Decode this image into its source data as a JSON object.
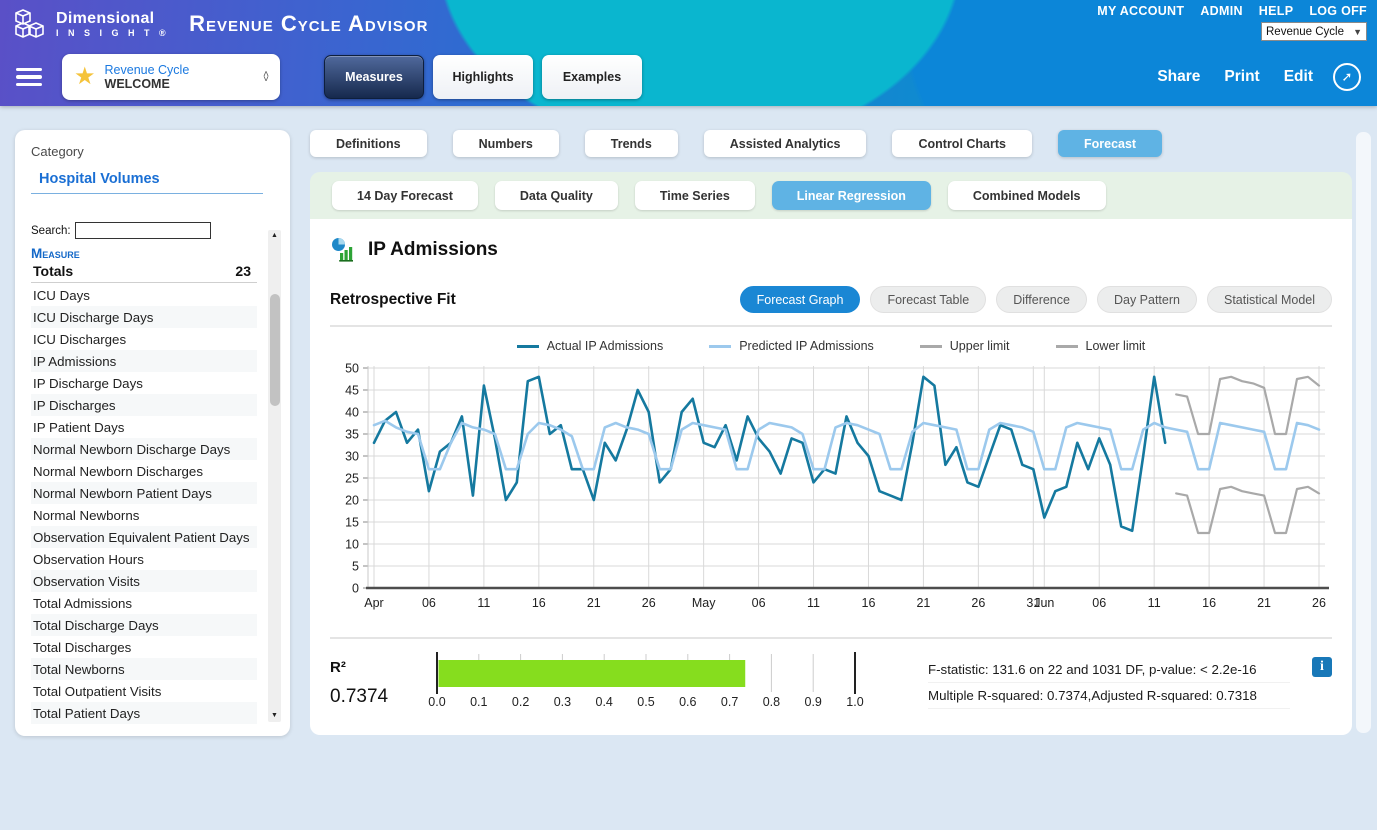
{
  "header": {
    "logo": {
      "line1": "Dimensional",
      "line2": "I N S I G H T ®"
    },
    "app_title": "Revenue Cycle Advisor",
    "top_links": [
      "MY ACCOUNT",
      "ADMIN",
      "HELP",
      "LOG OFF"
    ],
    "module_select": {
      "value": "Revenue Cycle"
    },
    "welcome": {
      "line1": "Revenue Cycle",
      "line2": "WELCOME"
    },
    "nav_buttons": [
      {
        "label": "Measures",
        "active": true
      },
      {
        "label": "Highlights",
        "active": false
      },
      {
        "label": "Examples",
        "active": false
      }
    ],
    "actions": [
      "Share",
      "Print",
      "Edit"
    ]
  },
  "sidebar": {
    "category_label": "Category",
    "category_value": "Hospital Volumes",
    "search_label": "Search:",
    "column_header": "Measure",
    "totals": {
      "label": "Totals",
      "count": "23"
    },
    "items": [
      "ICU Days",
      "ICU Discharge Days",
      "ICU Discharges",
      "IP Admissions",
      "IP Discharge Days",
      "IP Discharges",
      "IP Patient Days",
      "Normal Newborn Discharge Days",
      "Normal Newborn Discharges",
      "Normal Newborn Patient Days",
      "Normal Newborns",
      "Observation Equivalent Patient Days",
      "Observation Hours",
      "Observation Visits",
      "Total Admissions",
      "Total Discharge Days",
      "Total Discharges",
      "Total Newborns",
      "Total Outpatient Visits",
      "Total Patient Days"
    ]
  },
  "tabs": {
    "primary": [
      {
        "label": "Definitions",
        "active": false
      },
      {
        "label": "Numbers",
        "active": false
      },
      {
        "label": "Trends",
        "active": false
      },
      {
        "label": "Assisted Analytics",
        "active": false
      },
      {
        "label": "Control Charts",
        "active": false
      },
      {
        "label": "Forecast",
        "active": true
      }
    ],
    "secondary": [
      {
        "label": "14 Day Forecast",
        "active": false
      },
      {
        "label": "Data Quality",
        "active": false
      },
      {
        "label": "Time Series",
        "active": false
      },
      {
        "label": "Linear Regression",
        "active": true
      },
      {
        "label": "Combined Models",
        "active": false
      }
    ]
  },
  "main": {
    "title": "IP Admissions",
    "section_title": "Retrospective Fit",
    "view_buttons": [
      {
        "label": "Forecast Graph",
        "active": true
      },
      {
        "label": "Forecast Table",
        "active": false
      },
      {
        "label": "Difference",
        "active": false
      },
      {
        "label": "Day Pattern",
        "active": false
      },
      {
        "label": "Statistical Model",
        "active": false
      }
    ],
    "stats": {
      "r2_label": "R²",
      "r2_value": "0.7374",
      "line1": "F-statistic: 131.6 on 22 and 1031 DF, p-value: < 2.2e-16",
      "line2": "Multiple R-squared: 0.7374,Adjusted R-squared: 0.7318"
    }
  },
  "colors": {
    "accent_blue": "#1a87d4",
    "tab_active_blue": "#5fb3e4",
    "gauge_green": "#86DD1E",
    "actual_line": "#15799F",
    "predicted_line": "#9CC9ED",
    "limit_line": "#A9A9A9",
    "header_purple": "#5A50C7",
    "header_blue": "#1473D2",
    "header_cyan": "#06B5CE",
    "info_blue": "#1878B8",
    "star_yellow": "#F5C33B"
  },
  "chart_data": {
    "type": "line",
    "title": "Retrospective Fit",
    "xlabel": "",
    "ylabel": "",
    "ylim": [
      0,
      50
    ],
    "ytick_step": 5,
    "grid": true,
    "legend_position": "top",
    "x_ticks": [
      {
        "i": 0,
        "label": "Apr"
      },
      {
        "i": 5,
        "label": "06"
      },
      {
        "i": 10,
        "label": "11"
      },
      {
        "i": 15,
        "label": "16"
      },
      {
        "i": 20,
        "label": "21"
      },
      {
        "i": 25,
        "label": "26"
      },
      {
        "i": 30,
        "label": "May"
      },
      {
        "i": 35,
        "label": "06"
      },
      {
        "i": 40,
        "label": "11"
      },
      {
        "i": 45,
        "label": "16"
      },
      {
        "i": 50,
        "label": "21"
      },
      {
        "i": 55,
        "label": "26"
      },
      {
        "i": 60,
        "label": "31"
      },
      {
        "i": 61,
        "label": "Jun"
      },
      {
        "i": 66,
        "label": "06"
      },
      {
        "i": 71,
        "label": "11"
      },
      {
        "i": 76,
        "label": "16"
      },
      {
        "i": 81,
        "label": "21"
      },
      {
        "i": 86,
        "label": "26"
      }
    ],
    "legend": [
      {
        "label": "Actual IP Admissions",
        "color": "#15799F"
      },
      {
        "label": "Predicted IP Admissions",
        "color": "#9CC9ED"
      },
      {
        "label": "Upper limit",
        "color": "#A9A9A9"
      },
      {
        "label": "Lower limit",
        "color": "#A9A9A9"
      }
    ],
    "series": [
      {
        "name": "Actual IP Admissions",
        "color": "#15799F",
        "width": 2.6,
        "start_index": 0,
        "values": [
          33,
          38,
          40,
          33,
          36,
          22,
          31,
          33,
          39,
          21,
          46,
          34,
          20,
          24,
          47,
          48,
          35,
          37,
          27,
          27,
          20,
          33,
          29,
          36,
          45,
          40,
          24,
          27,
          40,
          43,
          33,
          32,
          37,
          29,
          39,
          34,
          31,
          26,
          34,
          33,
          24,
          27,
          26,
          39,
          33,
          30,
          22,
          21,
          20,
          33,
          48,
          46,
          28,
          32,
          24,
          23,
          30,
          37,
          36,
          28,
          27,
          16,
          22,
          23,
          33,
          27,
          34,
          28,
          14,
          13,
          30,
          48,
          33
        ]
      },
      {
        "name": "Predicted IP Admissions",
        "color": "#9CC9ED",
        "width": 2.6,
        "start_index": 0,
        "values": [
          37,
          38,
          36.5,
          35.5,
          35,
          27,
          27,
          33,
          37.5,
          36.5,
          36,
          35,
          27,
          27,
          35,
          37.5,
          37,
          36,
          34.5,
          27,
          27,
          36.5,
          37.5,
          36.5,
          36,
          35,
          27,
          27,
          36,
          37.5,
          37,
          36.5,
          36,
          27,
          27,
          36,
          37.5,
          37,
          36.5,
          35,
          27,
          27,
          36.5,
          37.5,
          37,
          36,
          35,
          27,
          27,
          35.5,
          37.5,
          37,
          36.5,
          36,
          27,
          27,
          36,
          37.5,
          37,
          36.5,
          35.5,
          27,
          27,
          36.5,
          37.5,
          37,
          36.5,
          36,
          27,
          27,
          36,
          37.5,
          36.5,
          36,
          35.5,
          27,
          27,
          37.5,
          37,
          36.5,
          36,
          35.5,
          27,
          27,
          37.5,
          37,
          36
        ]
      },
      {
        "name": "Upper limit",
        "color": "#A9A9A9",
        "width": 2.2,
        "start_index": 73,
        "values": [
          44,
          43.5,
          35,
          35,
          47.5,
          48,
          47,
          46.5,
          45.5,
          35,
          35,
          47.5,
          48,
          46
        ]
      },
      {
        "name": "Lower limit",
        "color": "#A9A9A9",
        "width": 2.2,
        "start_index": 73,
        "values": [
          21.5,
          21,
          12.5,
          12.5,
          22.5,
          23,
          22,
          21.5,
          21,
          12.5,
          12.5,
          22.5,
          23,
          21.5
        ]
      }
    ]
  },
  "gauge": {
    "value": 0.7374,
    "min": 0,
    "max": 1,
    "color": "#86DD1E",
    "tick_labels": [
      "0.0",
      "0.1",
      "0.2",
      "0.3",
      "0.4",
      "0.5",
      "0.6",
      "0.7",
      "0.8",
      "0.9",
      "1.0"
    ]
  }
}
